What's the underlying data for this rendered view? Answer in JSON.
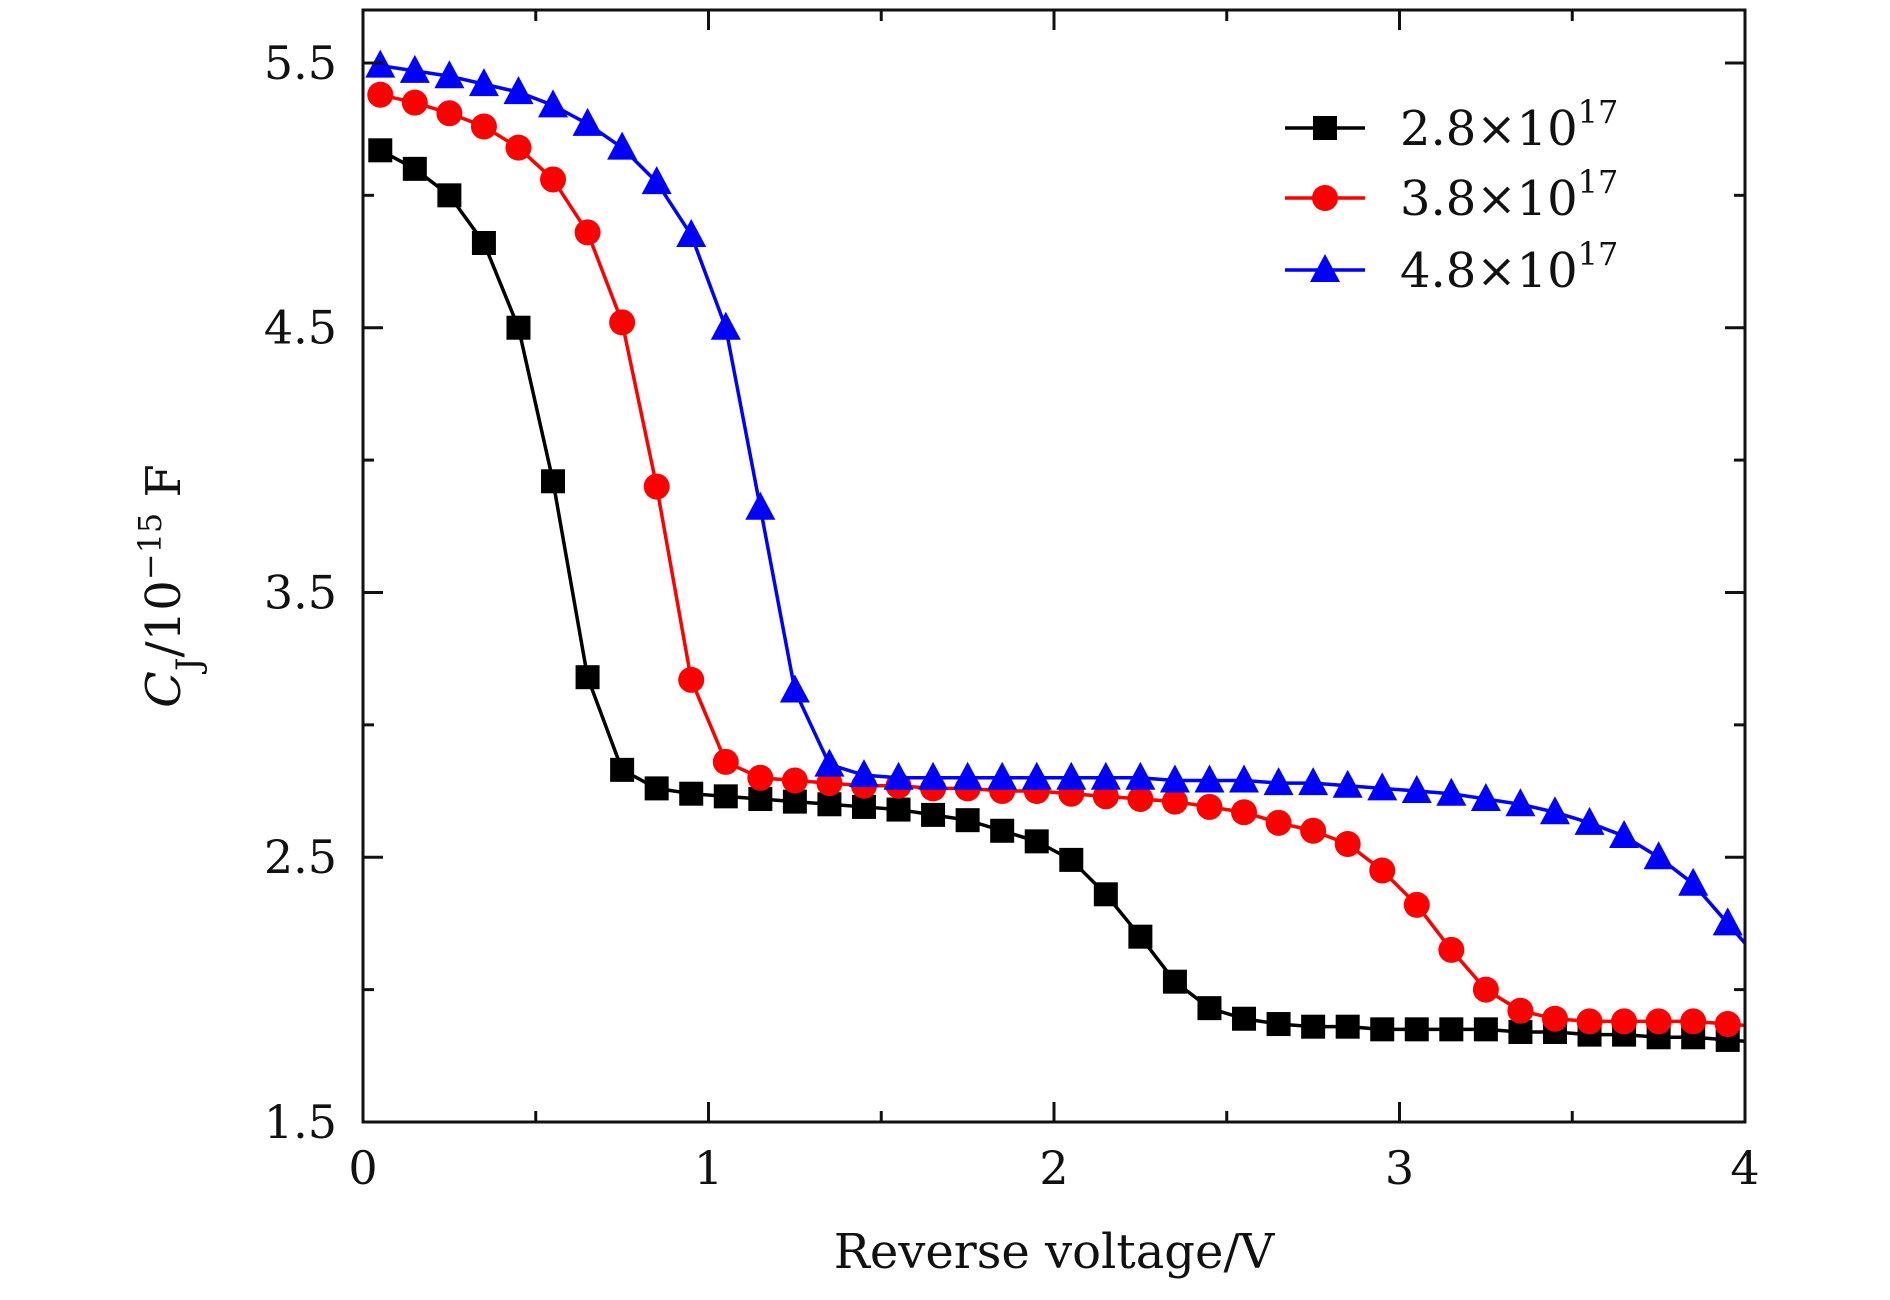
{
  "chart_data": {
    "type": "line",
    "xlabel": "Reverse voltage/V",
    "ylabel": {
      "main": "C",
      "subscript": "J",
      "unit_prefix": "/10",
      "exponent": "−15",
      "unit": " F"
    },
    "xlim": [
      0,
      4
    ],
    "ylim": [
      1.5,
      5.7
    ],
    "x_ticks": [
      0,
      1,
      2,
      3,
      4
    ],
    "x_tick_labels": [
      "0",
      "1",
      "2",
      "3",
      "4"
    ],
    "y_ticks": [
      1.5,
      2.5,
      3.5,
      4.5,
      5.5
    ],
    "y_tick_labels": [
      "1.5",
      "2.5",
      "3.5",
      "4.5",
      "5.5"
    ],
    "grid": false,
    "legend_position": "top-right",
    "x": [
      0.05,
      0.15,
      0.25,
      0.35,
      0.45,
      0.55,
      0.65,
      0.75,
      0.85,
      0.95,
      1.05,
      1.15,
      1.25,
      1.35,
      1.45,
      1.55,
      1.65,
      1.75,
      1.85,
      1.95,
      2.05,
      2.15,
      2.25,
      2.35,
      2.45,
      2.55,
      2.65,
      2.75,
      2.85,
      2.95,
      3.05,
      3.15,
      3.25,
      3.35,
      3.45,
      3.55,
      3.65,
      3.75,
      3.85,
      3.95
    ],
    "series": [
      {
        "name": "2.8×10^17",
        "legend_base": "2.8×10",
        "legend_exp": "17",
        "color": "#000000",
        "marker": "square",
        "values": [
          5.17,
          5.1,
          5.0,
          4.82,
          4.5,
          3.92,
          3.18,
          2.83,
          2.76,
          2.74,
          2.73,
          2.72,
          2.71,
          2.7,
          2.69,
          2.68,
          2.66,
          2.64,
          2.6,
          2.56,
          2.49,
          2.36,
          2.2,
          2.03,
          1.93,
          1.89,
          1.87,
          1.86,
          1.86,
          1.85,
          1.85,
          1.85,
          1.85,
          1.84,
          1.84,
          1.83,
          1.83,
          1.82,
          1.82,
          1.81
        ]
      },
      {
        "name": "3.8×10^17",
        "legend_base": "3.8×10",
        "legend_exp": "17",
        "color": "#ff0000",
        "marker": "circle",
        "values": [
          5.38,
          5.35,
          5.31,
          5.26,
          5.18,
          5.06,
          4.86,
          4.52,
          3.9,
          3.17,
          2.86,
          2.8,
          2.79,
          2.78,
          2.77,
          2.77,
          2.76,
          2.76,
          2.75,
          2.75,
          2.74,
          2.73,
          2.72,
          2.71,
          2.69,
          2.67,
          2.63,
          2.6,
          2.55,
          2.45,
          2.32,
          2.15,
          2.0,
          1.92,
          1.89,
          1.88,
          1.88,
          1.88,
          1.88,
          1.87
        ]
      },
      {
        "name": "4.8×10^17",
        "legend_base": "4.8×10",
        "legend_exp": "17",
        "color": "#0000ff",
        "marker": "triangle",
        "values": [
          5.49,
          5.47,
          5.45,
          5.42,
          5.39,
          5.34,
          5.27,
          5.18,
          5.05,
          4.85,
          4.5,
          3.82,
          3.13,
          2.85,
          2.81,
          2.8,
          2.8,
          2.8,
          2.8,
          2.8,
          2.8,
          2.8,
          2.8,
          2.79,
          2.79,
          2.79,
          2.78,
          2.78,
          2.77,
          2.76,
          2.75,
          2.74,
          2.72,
          2.7,
          2.67,
          2.63,
          2.58,
          2.5,
          2.4,
          2.25
        ]
      }
    ]
  }
}
